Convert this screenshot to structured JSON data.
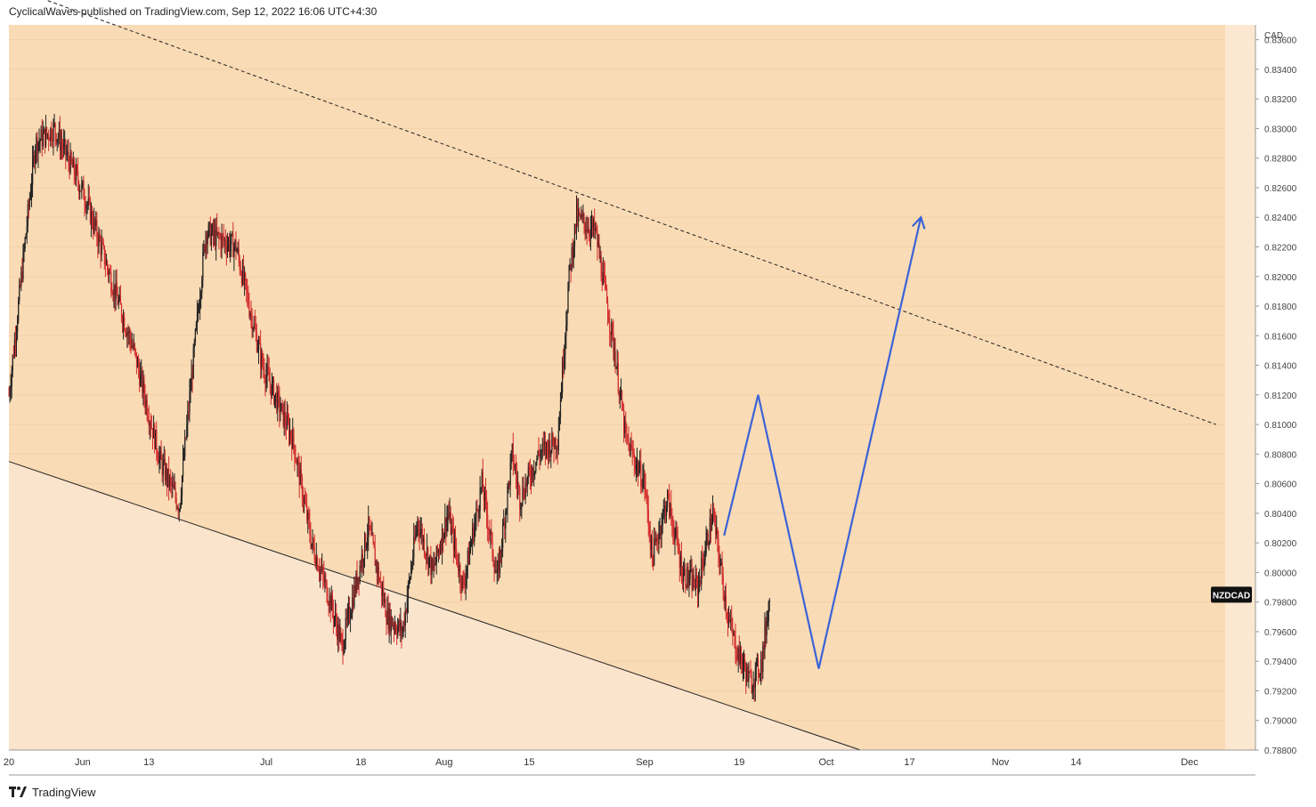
{
  "header": {
    "publisher_line": "CyclicalWaves published on TradingView.com, Sep 12, 2022 16:06 UTC+4:30"
  },
  "footer": {
    "brand": "TradingView"
  },
  "chart_data": {
    "type": "candlestick",
    "symbol": "NZDCAD",
    "currency": "CAD",
    "last_price": 0.7985,
    "ylim": [
      0.788,
      0.837
    ],
    "yticks": [
      "0.83600",
      "0.83400",
      "0.83200",
      "0.83000",
      "0.82800",
      "0.82600",
      "0.82400",
      "0.82200",
      "0.82000",
      "0.81800",
      "0.81600",
      "0.81400",
      "0.81200",
      "0.81000",
      "0.80800",
      "0.80600",
      "0.80400",
      "0.80200",
      "0.80000",
      "0.79800",
      "0.79600",
      "0.79400",
      "0.79200",
      "0.79000",
      "0.78800"
    ],
    "xticks": [
      "20",
      "Jun",
      "13",
      "Jul",
      "18",
      "Aug",
      "15",
      "Sep",
      "19",
      "Oct",
      "17",
      "Nov",
      "14",
      "Dec"
    ],
    "colors": {
      "background": "#f9dbb5",
      "lower_zone": "#fbe4cc",
      "up_candle": "#222222",
      "down_candle": "#d32f2f",
      "projection": "#3a63d8",
      "trendline": "#222222"
    },
    "candle_path": [
      [
        0,
        0.812
      ],
      [
        7,
        0.829
      ],
      [
        12,
        0.83
      ],
      [
        20,
        0.8255
      ],
      [
        28,
        0.819
      ],
      [
        33,
        0.815
      ],
      [
        40,
        0.8075
      ],
      [
        45,
        0.8045
      ],
      [
        52,
        0.823
      ],
      [
        60,
        0.822
      ],
      [
        67,
        0.814
      ],
      [
        75,
        0.809
      ],
      [
        80,
        0.802
      ],
      [
        85,
        0.798
      ],
      [
        88,
        0.795
      ],
      [
        95,
        0.803
      ],
      [
        100,
        0.797
      ],
      [
        104,
        0.796
      ],
      [
        108,
        0.8035
      ],
      [
        112,
        0.8
      ],
      [
        116,
        0.804
      ],
      [
        120,
        0.799
      ],
      [
        125,
        0.806
      ],
      [
        129,
        0.7995
      ],
      [
        133,
        0.808
      ],
      [
        135,
        0.805
      ],
      [
        140,
        0.808
      ],
      [
        145,
        0.809
      ],
      [
        148,
        0.82
      ],
      [
        150,
        0.824
      ],
      [
        155,
        0.823
      ],
      [
        160,
        0.815
      ],
      [
        163,
        0.809
      ],
      [
        168,
        0.806
      ],
      [
        170,
        0.801
      ],
      [
        174,
        0.805
      ],
      [
        178,
        0.8
      ],
      [
        182,
        0.799
      ],
      [
        186,
        0.804
      ],
      [
        190,
        0.797
      ],
      [
        192,
        0.795
      ],
      [
        196,
        0.7925
      ],
      [
        199,
        0.794
      ],
      [
        201,
        0.7985
      ]
    ],
    "channel": {
      "upper": {
        "style": "dashed",
        "from": [
          1,
          0.8395
        ],
        "to": [
          319,
          0.81
        ]
      },
      "lower": {
        "style": "solid",
        "from": [
          0,
          0.8075
        ],
        "to": [
          225,
          0.788
        ]
      }
    },
    "projection": [
      [
        189,
        0.8025
      ],
      [
        198,
        0.812
      ],
      [
        214,
        0.7935
      ],
      [
        241,
        0.824
      ]
    ]
  }
}
